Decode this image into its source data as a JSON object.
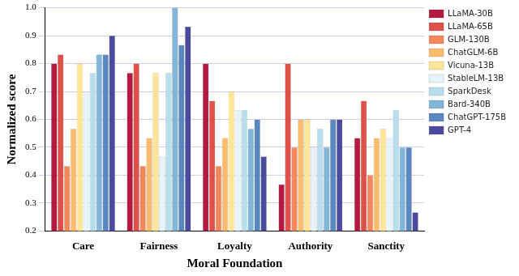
{
  "chart_data": {
    "type": "bar",
    "x_label": "Moral Foundation",
    "y_label": "Normalized score",
    "categories": [
      "Care",
      "Fairness",
      "Loyalty",
      "Authority",
      "Sanctity"
    ],
    "series": [
      {
        "name": "LLaMA-30B",
        "color": "#b5193f",
        "values": [
          0.8,
          0.767,
          0.8,
          0.367,
          0.533
        ]
      },
      {
        "name": "LLaMA-65B",
        "color": "#e0504a",
        "values": [
          0.833,
          0.8,
          0.667,
          0.8,
          0.667
        ]
      },
      {
        "name": "GLM-130B",
        "color": "#f4875a",
        "values": [
          0.433,
          0.433,
          0.433,
          0.5,
          0.4
        ]
      },
      {
        "name": "ChatGLM-6B",
        "color": "#fbbc6e",
        "values": [
          0.567,
          0.533,
          0.533,
          0.6,
          0.533
        ]
      },
      {
        "name": "Vicuna-13B",
        "color": "#fee699",
        "values": [
          0.8,
          0.767,
          0.7,
          0.6,
          0.567
        ]
      },
      {
        "name": "StableLM-13B",
        "color": "#e6f4f9",
        "values": [
          0.7,
          0.467,
          0.633,
          0.5,
          0.533
        ]
      },
      {
        "name": "SparkDesk",
        "color": "#b8deee",
        "values": [
          0.767,
          0.767,
          0.633,
          0.567,
          0.633
        ]
      },
      {
        "name": "Bard-340B",
        "color": "#82b6d9",
        "values": [
          0.833,
          1.0,
          0.567,
          0.5,
          0.5
        ]
      },
      {
        "name": "ChatGPT-175B",
        "color": "#5a87c2",
        "values": [
          0.833,
          0.867,
          0.6,
          0.6,
          0.5
        ]
      },
      {
        "name": "GPT-4",
        "color": "#4a4a9f",
        "values": [
          0.9,
          0.933,
          0.467,
          0.6,
          0.267
        ]
      }
    ],
    "ylim": [
      0.2,
      1.0
    ],
    "yticks": [
      0.2,
      0.3,
      0.4,
      0.5,
      0.6,
      0.7,
      0.8,
      0.9,
      {
        "value": 1.0,
        "label": "1.0"
      }
    ],
    "grid": true,
    "legend": "right"
  }
}
